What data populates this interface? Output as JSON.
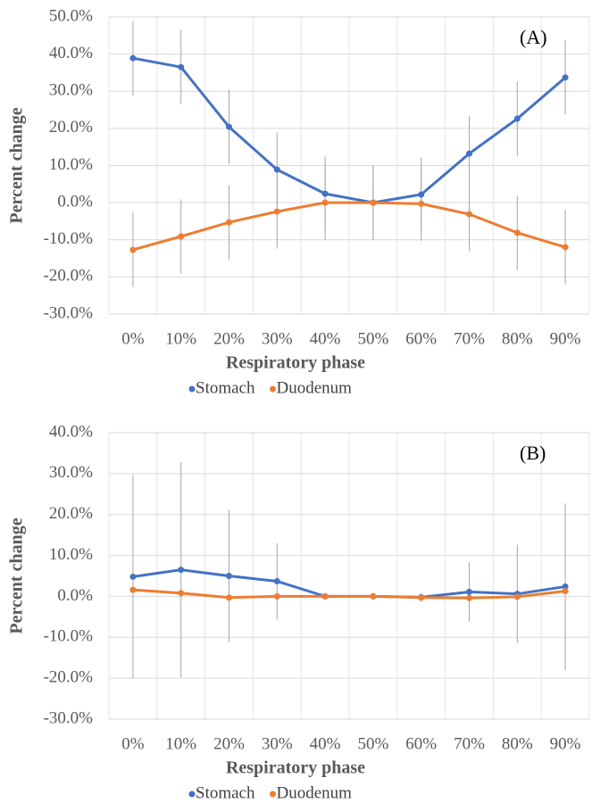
{
  "chart_data": [
    {
      "type": "line",
      "annotation": "(A)",
      "xlabel": "Respiratory phase",
      "ylabel": "Percent change",
      "categories": [
        "0%",
        "10%",
        "20%",
        "30%",
        "40%",
        "50%",
        "60%",
        "70%",
        "80%",
        "90%"
      ],
      "series": [
        {
          "name": "Stomach",
          "color": "#4472c4",
          "values": [
            38.9,
            36.5,
            20.4,
            8.9,
            2.4,
            0,
            2.2,
            13.2,
            22.6,
            33.7
          ],
          "errors": [
            10,
            10,
            10,
            10,
            10,
            10,
            10,
            10,
            10,
            10
          ]
        },
        {
          "name": "Duodenum",
          "color": "#ed7d31",
          "values": [
            -12.7,
            -9.1,
            -5.3,
            -2.4,
            0,
            0,
            -0.3,
            -3.1,
            -8.1,
            -12
          ],
          "errors": [
            10,
            10,
            10,
            10,
            10,
            10,
            10,
            10,
            10,
            10
          ]
        }
      ],
      "ylim": [
        -30,
        50
      ],
      "yticks": [
        {
          "value": -30,
          "label": "-30.0%"
        },
        {
          "value": -20,
          "label": "-20.0%"
        },
        {
          "value": -10,
          "label": "-10.0%"
        },
        {
          "value": 0,
          "label": "0.0%"
        },
        {
          "value": 10,
          "label": "10.0%"
        },
        {
          "value": 20,
          "label": "20.0%"
        },
        {
          "value": 30,
          "label": "30.0%"
        },
        {
          "value": 40,
          "label": "40.0%"
        },
        {
          "value": 50,
          "label": "50.0%"
        }
      ],
      "grid": true,
      "legend": "bottom"
    },
    {
      "type": "line",
      "annotation": "(B)",
      "xlabel": "Respiratory phase",
      "ylabel": "Percent change",
      "categories": [
        "0%",
        "10%",
        "20%",
        "30%",
        "40%",
        "50%",
        "60%",
        "70%",
        "80%",
        "90%"
      ],
      "series": [
        {
          "name": "Stomach",
          "color": "#4472c4",
          "values": [
            4.8,
            6.5,
            5.0,
            3.7,
            0,
            0,
            -0.2,
            1.1,
            0.6,
            2.4
          ],
          "errors": [
            24.8,
            26.3,
            16.2,
            9.3,
            0.3,
            0.3,
            0.5,
            7.2,
            12,
            20.3
          ]
        },
        {
          "name": "Duodenum",
          "color": "#ed7d31",
          "values": [
            1.6,
            0.8,
            -0.3,
            0,
            0,
            0,
            -0.3,
            -0.4,
            -0.1,
            1.3
          ],
          "errors": [
            0.3,
            0.3,
            0.3,
            0.3,
            0.3,
            0.3,
            1.0,
            0.3,
            0.3,
            0.3
          ]
        }
      ],
      "ylim": [
        -30,
        40
      ],
      "yticks": [
        {
          "value": -30,
          "label": "-30.0%"
        },
        {
          "value": -20,
          "label": "-20.0%"
        },
        {
          "value": -10,
          "label": "-10.0%"
        },
        {
          "value": 0,
          "label": "0.0%"
        },
        {
          "value": 10,
          "label": "10.0%"
        },
        {
          "value": 20,
          "label": "20.0%"
        },
        {
          "value": 30,
          "label": "30.0%"
        },
        {
          "value": 40,
          "label": "40.0%"
        }
      ],
      "grid": true,
      "legend": "bottom"
    }
  ]
}
